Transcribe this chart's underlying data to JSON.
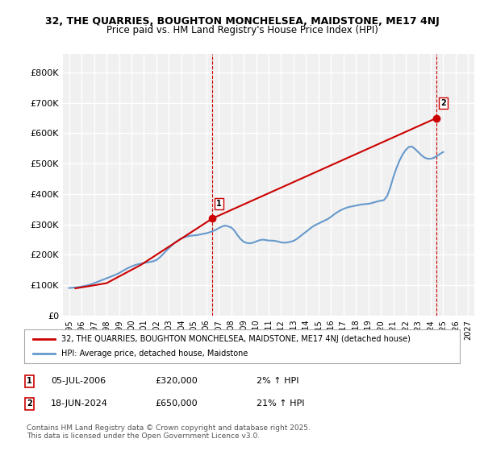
{
  "title1": "32, THE QUARRIES, BOUGHTON MONCHELSEA, MAIDSTONE, ME17 4NJ",
  "title2": "Price paid vs. HM Land Registry's House Price Index (HPI)",
  "ylabel_ticks": [
    "£0",
    "£100K",
    "£200K",
    "£300K",
    "£400K",
    "£500K",
    "£600K",
    "£700K",
    "£800K"
  ],
  "ytick_values": [
    0,
    100000,
    200000,
    300000,
    400000,
    500000,
    600000,
    700000,
    800000
  ],
  "ylim": [
    0,
    860000
  ],
  "xlim_start": 1994.5,
  "xlim_end": 2027.5,
  "xticks": [
    1995,
    1996,
    1997,
    1998,
    1999,
    2000,
    2001,
    2002,
    2003,
    2004,
    2005,
    2006,
    2007,
    2008,
    2009,
    2010,
    2011,
    2012,
    2013,
    2014,
    2015,
    2016,
    2017,
    2018,
    2019,
    2020,
    2021,
    2022,
    2023,
    2024,
    2025,
    2026,
    2027
  ],
  "background_color": "#ffffff",
  "plot_bg_color": "#f0f0f0",
  "grid_color": "#ffffff",
  "hpi_color": "#6699cc",
  "price_color": "#cc0000",
  "marker1_year": 2006.5,
  "marker1_price": 320000,
  "marker1_label": "1",
  "marker2_year": 2024.47,
  "marker2_price": 650000,
  "marker2_label": "2",
  "vline1_year": 2006.5,
  "vline2_year": 2024.47,
  "legend_line1": "32, THE QUARRIES, BOUGHTON MONCHELSEA, MAIDSTONE, ME17 4NJ (detached house)",
  "legend_line2": "HPI: Average price, detached house, Maidstone",
  "annot1_date": "05-JUL-2006",
  "annot1_price": "£320,000",
  "annot1_hpi": "2% ↑ HPI",
  "annot2_date": "18-JUN-2024",
  "annot2_price": "£650,000",
  "annot2_hpi": "21% ↑ HPI",
  "copyright_text": "Contains HM Land Registry data © Crown copyright and database right 2025.\nThis data is licensed under the Open Government Licence v3.0.",
  "hpi_data_x": [
    1995.0,
    1995.25,
    1995.5,
    1995.75,
    1996.0,
    1996.25,
    1996.5,
    1996.75,
    1997.0,
    1997.25,
    1997.5,
    1997.75,
    1998.0,
    1998.25,
    1998.5,
    1998.75,
    1999.0,
    1999.25,
    1999.5,
    1999.75,
    2000.0,
    2000.25,
    2000.5,
    2000.75,
    2001.0,
    2001.25,
    2001.5,
    2001.75,
    2002.0,
    2002.25,
    2002.5,
    2002.75,
    2003.0,
    2003.25,
    2003.5,
    2003.75,
    2004.0,
    2004.25,
    2004.5,
    2004.75,
    2005.0,
    2005.25,
    2005.5,
    2005.75,
    2006.0,
    2006.25,
    2006.5,
    2006.75,
    2007.0,
    2007.25,
    2007.5,
    2007.75,
    2008.0,
    2008.25,
    2008.5,
    2008.75,
    2009.0,
    2009.25,
    2009.5,
    2009.75,
    2010.0,
    2010.25,
    2010.5,
    2010.75,
    2011.0,
    2011.25,
    2011.5,
    2011.75,
    2012.0,
    2012.25,
    2012.5,
    2012.75,
    2013.0,
    2013.25,
    2013.5,
    2013.75,
    2014.0,
    2014.25,
    2014.5,
    2014.75,
    2015.0,
    2015.25,
    2015.5,
    2015.75,
    2016.0,
    2016.25,
    2016.5,
    2016.75,
    2017.0,
    2017.25,
    2017.5,
    2017.75,
    2018.0,
    2018.25,
    2018.5,
    2018.75,
    2019.0,
    2019.25,
    2019.5,
    2019.75,
    2020.0,
    2020.25,
    2020.5,
    2020.75,
    2021.0,
    2021.25,
    2021.5,
    2021.75,
    2022.0,
    2022.25,
    2022.5,
    2022.75,
    2023.0,
    2023.25,
    2023.5,
    2023.75,
    2024.0,
    2024.25,
    2024.5,
    2024.75,
    2025.0
  ],
  "hpi_data_y": [
    91000,
    92000,
    93000,
    94000,
    96000,
    98000,
    100000,
    103000,
    107000,
    111000,
    115000,
    119000,
    123000,
    127000,
    131000,
    135000,
    140000,
    146000,
    152000,
    157000,
    162000,
    166000,
    169000,
    171000,
    173000,
    175000,
    177000,
    179000,
    183000,
    191000,
    201000,
    212000,
    222000,
    232000,
    241000,
    248000,
    254000,
    258000,
    261000,
    263000,
    264000,
    265000,
    267000,
    269000,
    271000,
    274000,
    278000,
    282000,
    288000,
    293000,
    296000,
    294000,
    290000,
    280000,
    265000,
    252000,
    243000,
    239000,
    238000,
    240000,
    244000,
    248000,
    250000,
    249000,
    247000,
    247000,
    246000,
    244000,
    241000,
    240000,
    241000,
    243000,
    246000,
    252000,
    260000,
    268000,
    276000,
    284000,
    292000,
    298000,
    303000,
    308000,
    313000,
    318000,
    325000,
    333000,
    340000,
    346000,
    351000,
    355000,
    358000,
    360000,
    362000,
    364000,
    366000,
    367000,
    368000,
    370000,
    373000,
    376000,
    378000,
    380000,
    393000,
    420000,
    455000,
    485000,
    510000,
    530000,
    545000,
    555000,
    556000,
    548000,
    538000,
    528000,
    520000,
    516000,
    516000,
    519000,
    525000,
    532000,
    538000
  ],
  "price_data_x": [
    1995.5,
    1996.5,
    1998.0,
    2000.75,
    2006.5,
    2024.47
  ],
  "price_data_y": [
    90000,
    96500,
    107000,
    167000,
    320000,
    650000
  ]
}
